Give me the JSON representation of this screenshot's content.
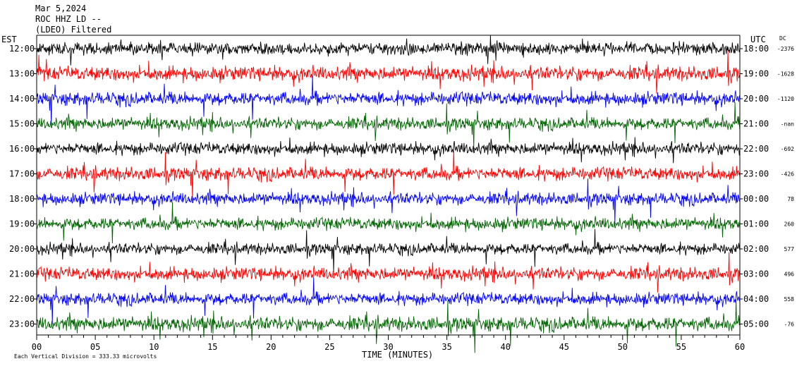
{
  "header": {
    "date": "Mar 5,2024",
    "station": "ROC HHZ LD --",
    "filter": "(LDEO) Filtered"
  },
  "chart_data": {
    "type": "helicorder",
    "left_axis_label": "EST",
    "right_axis_label": "UTC",
    "dc_label": "DC",
    "xlabel": "TIME (MINUTES)",
    "xlim": [
      0,
      60
    ],
    "x_ticks": [
      "00",
      "05",
      "10",
      "15",
      "20",
      "25",
      "30",
      "35",
      "40",
      "45",
      "50",
      "55",
      "60"
    ],
    "scale_note": "Each Vertical Division = 333.33 microvolts",
    "trace_colors": [
      "#000000",
      "#ff0000",
      "#0000ff",
      "#006400"
    ],
    "rows": [
      {
        "est": "12:00",
        "utc": "18:00",
        "dc": "-2376",
        "color": "#000000",
        "amp": 1.3
      },
      {
        "est": "13:00",
        "utc": "19:00",
        "dc": "-1628",
        "color": "#ff0000",
        "amp": 1.5
      },
      {
        "est": "14:00",
        "utc": "20:00",
        "dc": "-1120",
        "color": "#0000ff",
        "amp": 1.4
      },
      {
        "est": "15:00",
        "utc": "21:00",
        "dc": "-nan",
        "color": "#006400",
        "amp": 1.3
      },
      {
        "est": "16:00",
        "utc": "22:00",
        "dc": "-692",
        "color": "#000000",
        "amp": 1.3
      },
      {
        "est": "17:00",
        "utc": "23:00",
        "dc": "-426",
        "color": "#ff0000",
        "amp": 1.4
      },
      {
        "est": "18:00",
        "utc": "00:00",
        "dc": "78",
        "color": "#0000ff",
        "amp": 1.3
      },
      {
        "est": "19:00",
        "utc": "01:00",
        "dc": "260",
        "color": "#006400",
        "amp": 1.3
      },
      {
        "est": "20:00",
        "utc": "02:00",
        "dc": "577",
        "color": "#000000",
        "amp": 1.2
      },
      {
        "est": "21:00",
        "utc": "03:00",
        "dc": "496",
        "color": "#ff0000",
        "amp": 1.4
      },
      {
        "est": "22:00",
        "utc": "04:00",
        "dc": "558",
        "color": "#0000ff",
        "amp": 1.3
      },
      {
        "est": "23:00",
        "utc": "05:00",
        "dc": "-76",
        "color": "#006400",
        "amp": 1.5
      }
    ]
  }
}
